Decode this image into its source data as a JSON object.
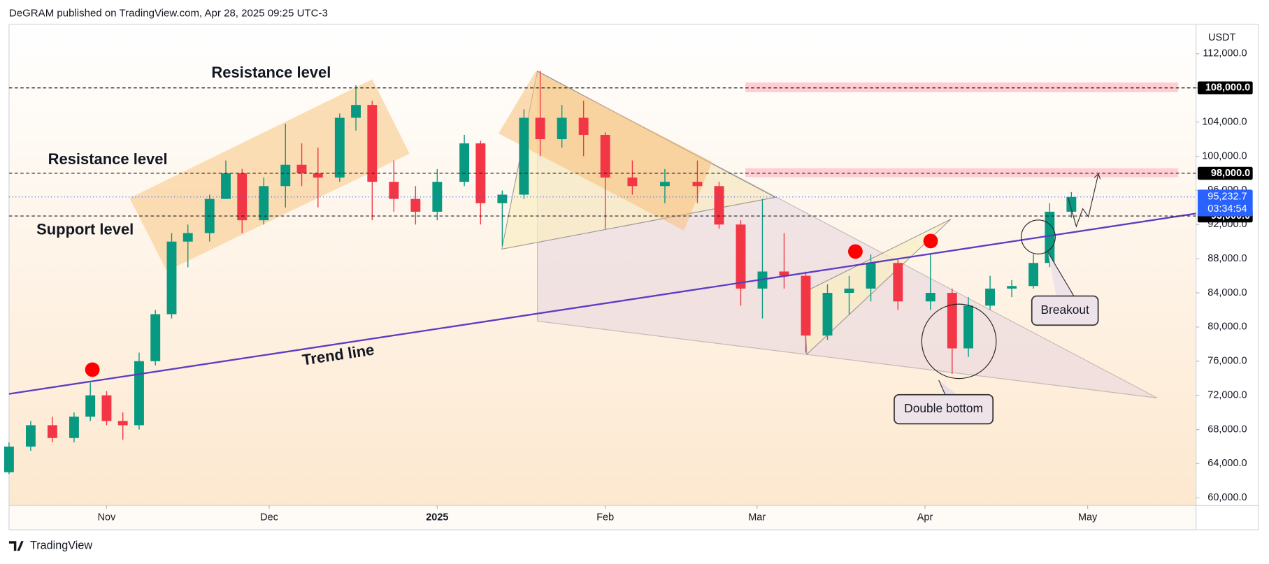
{
  "header": "DeGRAM published on TradingView.com, Apr 28, 2025 09:25 UTC-3",
  "brand": "TradingView",
  "chart_data": {
    "type": "candlestick",
    "currency": "USDT",
    "x": [
      "2024-10-14",
      "2024-10-18",
      "2024-10-22",
      "2024-10-26",
      "2024-10-29",
      "2024-11-01",
      "2024-11-04",
      "2024-11-07",
      "2024-11-10",
      "2024-11-13",
      "2024-11-16",
      "2024-11-20",
      "2024-11-23",
      "2024-11-26",
      "2024-11-30",
      "2024-12-04",
      "2024-12-07",
      "2024-12-10",
      "2024-12-14",
      "2024-12-17",
      "2024-12-20",
      "2024-12-24",
      "2024-12-28",
      "2025-01-01",
      "2025-01-06",
      "2025-01-09",
      "2025-01-13",
      "2025-01-17",
      "2025-01-20",
      "2025-01-24",
      "2025-01-28",
      "2025-02-01",
      "2025-02-06",
      "2025-02-12",
      "2025-02-18",
      "2025-02-22",
      "2025-02-26",
      "2025-03-02",
      "2025-03-06",
      "2025-03-10",
      "2025-03-14",
      "2025-03-18",
      "2025-03-22",
      "2025-03-27",
      "2025-04-02",
      "2025-04-06",
      "2025-04-09",
      "2025-04-13",
      "2025-04-17",
      "2025-04-21",
      "2025-04-24",
      "2025-04-28"
    ],
    "open": [
      63000,
      66000,
      68500,
      67000,
      69500,
      72000,
      69000,
      68500,
      76000,
      81500,
      90000,
      91000,
      95000,
      98000,
      92500,
      96500,
      99000,
      98000,
      97500,
      104500,
      106000,
      97000,
      95000,
      93500,
      97000,
      101500,
      94500,
      95500,
      104500,
      102000,
      104500,
      102500,
      97500,
      96500,
      97000,
      96500,
      92000,
      84500,
      86500,
      86000,
      79000,
      84000,
      84500,
      87500,
      83000,
      84000,
      77500,
      82500,
      84500,
      84800,
      87500,
      93500
    ],
    "high": [
      66500,
      69000,
      69500,
      70000,
      73500,
      72500,
      70000,
      77000,
      82000,
      91000,
      92000,
      95500,
      99500,
      98500,
      97500,
      103800,
      101500,
      101000,
      105000,
      108300,
      106500,
      99500,
      96500,
      98500,
      102500,
      101800,
      96000,
      105500,
      110000,
      106000,
      106500,
      102800,
      99500,
      98500,
      99500,
      97000,
      92500,
      95000,
      91000,
      86500,
      85000,
      86000,
      88500,
      88000,
      88500,
      84500,
      83500,
      86000,
      85500,
      88500,
      94500,
      95800
    ],
    "low": [
      62800,
      65500,
      66500,
      66500,
      69000,
      68500,
      66800,
      68000,
      75500,
      81000,
      87000,
      90000,
      95000,
      91000,
      92000,
      94000,
      96500,
      94000,
      97000,
      103000,
      92500,
      93500,
      92000,
      92500,
      96500,
      92000,
      89500,
      95000,
      100000,
      101000,
      100000,
      91500,
      95500,
      94500,
      94500,
      91500,
      82500,
      81000,
      84500,
      77000,
      78500,
      81500,
      83000,
      82000,
      82000,
      74500,
      76500,
      82000,
      83500,
      84500,
      87000,
      92800
    ],
    "close": [
      66000,
      68500,
      67000,
      69500,
      72000,
      69000,
      68500,
      76000,
      81500,
      90000,
      91000,
      95000,
      98000,
      92500,
      96500,
      99000,
      98000,
      97500,
      104500,
      106000,
      97000,
      95000,
      93500,
      97000,
      101500,
      94500,
      95500,
      104500,
      102000,
      104500,
      102500,
      97500,
      96500,
      97000,
      96500,
      92000,
      84500,
      86500,
      86000,
      79000,
      84000,
      84500,
      87500,
      83000,
      84000,
      77500,
      82500,
      84500,
      84800,
      87500,
      93500,
      95232.7
    ],
    "up_color": "#089981",
    "down_color": "#f23645",
    "xlim": [
      "2024-10-14",
      "2025-05-21"
    ],
    "xticks": [
      {
        "value": "2024-11-01",
        "label": "Nov"
      },
      {
        "value": "2024-12-01",
        "label": "Dec"
      },
      {
        "value": "2025-01-01",
        "label": "2025"
      },
      {
        "value": "2025-02-01",
        "label": "Feb"
      },
      {
        "value": "2025-03-01",
        "label": "Mar"
      },
      {
        "value": "2025-04-01",
        "label": "Apr"
      },
      {
        "value": "2025-05-01",
        "label": "May"
      }
    ],
    "ylim": [
      59100,
      115450
    ],
    "yticks": [
      {
        "value": 60000,
        "label": "60,000.0"
      },
      {
        "value": 64000,
        "label": "64,000.0"
      },
      {
        "value": 68000,
        "label": "68,000.0"
      },
      {
        "value": 72000,
        "label": "72,000.0"
      },
      {
        "value": 76000,
        "label": "76,000.0"
      },
      {
        "value": 80000,
        "label": "80,000.0"
      },
      {
        "value": 84000,
        "label": "84,000.0"
      },
      {
        "value": 88000,
        "label": "88,000.0"
      },
      {
        "value": 92000,
        "label": "92,000.0"
      },
      {
        "value": 96000,
        "label": "96,000.0"
      },
      {
        "value": 100000,
        "label": "100,000.0"
      },
      {
        "value": 104000,
        "label": "104,000.0"
      },
      {
        "value": 108000,
        "label": "108,000.0"
      },
      {
        "value": 112000,
        "label": "112,000.0"
      }
    ],
    "levels": [
      {
        "value": 108000,
        "label": "108,000.0"
      },
      {
        "value": 98000,
        "label": "98,000.0"
      },
      {
        "value": 93000,
        "label": "93,000.0"
      }
    ],
    "last_price": {
      "value": 95232.7,
      "label": "95,232.7"
    },
    "countdown": "03:34:54",
    "grid": false,
    "annotations": [
      "Resistance level",
      "Resistance level",
      "Support level",
      "Trend line",
      "Double bottom",
      "Breakout"
    ]
  }
}
